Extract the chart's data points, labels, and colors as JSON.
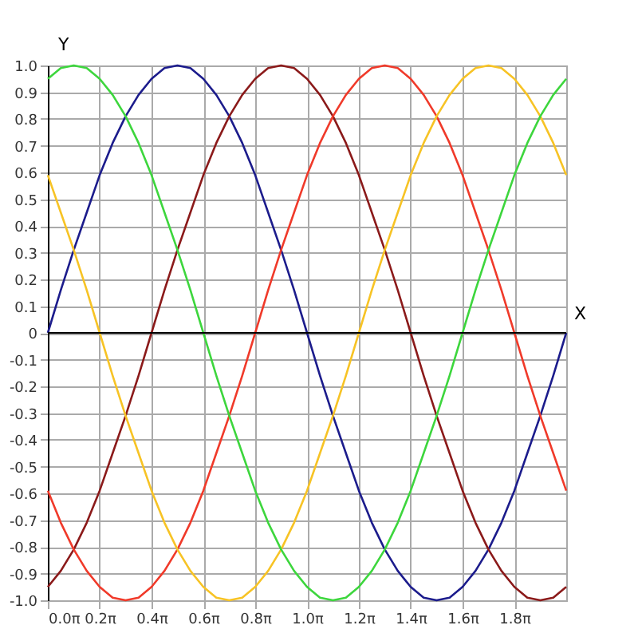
{
  "chart_data": {
    "type": "line",
    "xlabel": "X",
    "ylabel": "Y",
    "x": [
      0,
      0.1571,
      0.3142,
      0.4712,
      0.6283,
      0.7854,
      0.9425,
      1.0996,
      1.2566,
      1.4137,
      1.5708,
      1.7279,
      1.885,
      2.042,
      2.1991,
      2.3562,
      2.5133,
      2.6704,
      2.8274,
      2.9845,
      3.1416,
      3.2987,
      3.4558,
      3.6128,
      3.7699,
      3.927,
      4.0841,
      4.2412,
      4.3982,
      4.5553,
      4.7124,
      4.8695,
      5.0265,
      5.1836,
      5.3407,
      5.4978,
      5.6549,
      5.8119,
      5.969,
      6.1261,
      6.2832
    ],
    "series": [
      {
        "color": "#1c1c8c",
        "values": [
          0,
          0.16,
          0.31,
          0.45,
          0.59,
          0.71,
          0.81,
          0.89,
          0.95,
          0.99,
          1,
          0.99,
          0.95,
          0.89,
          0.81,
          0.71,
          0.59,
          0.45,
          0.31,
          0.16,
          0,
          -0.16,
          -0.31,
          -0.45,
          -0.59,
          -0.71,
          -0.81,
          -0.89,
          -0.95,
          -0.99,
          -1,
          -0.99,
          -0.95,
          -0.89,
          -0.81,
          -0.71,
          -0.59,
          -0.45,
          -0.31,
          -0.16,
          0
        ]
      },
      {
        "color": "#8b1a1a",
        "values": [
          -0.95,
          -0.89,
          -0.81,
          -0.71,
          -0.59,
          -0.45,
          -0.31,
          -0.16,
          0,
          0.16,
          0.31,
          0.45,
          0.59,
          0.71,
          0.81,
          0.89,
          0.95,
          0.99,
          1,
          0.99,
          0.95,
          0.89,
          0.81,
          0.71,
          0.59,
          0.45,
          0.31,
          0.16,
          0,
          -0.16,
          -0.31,
          -0.45,
          -0.59,
          -0.71,
          -0.81,
          -0.89,
          -0.95,
          -0.99,
          -1,
          -0.99,
          -0.95
        ]
      },
      {
        "color": "#f03a2a",
        "values": [
          -0.59,
          -0.71,
          -0.81,
          -0.89,
          -0.95,
          -0.99,
          -1,
          -0.99,
          -0.95,
          -0.89,
          -0.81,
          -0.71,
          -0.59,
          -0.45,
          -0.31,
          -0.16,
          0,
          0.16,
          0.31,
          0.45,
          0.59,
          0.71,
          0.81,
          0.89,
          0.95,
          0.99,
          1,
          0.99,
          0.95,
          0.89,
          0.81,
          0.71,
          0.59,
          0.45,
          0.31,
          0.16,
          0,
          -0.16,
          -0.31,
          -0.45,
          -0.59
        ]
      },
      {
        "color": "#f7c325",
        "values": [
          0.59,
          0.45,
          0.31,
          0.16,
          0,
          -0.16,
          -0.31,
          -0.45,
          -0.59,
          -0.71,
          -0.81,
          -0.89,
          -0.95,
          -0.99,
          -1,
          -0.99,
          -0.95,
          -0.89,
          -0.81,
          -0.71,
          -0.59,
          -0.45,
          -0.31,
          -0.16,
          0,
          0.16,
          0.31,
          0.45,
          0.59,
          0.71,
          0.81,
          0.89,
          0.95,
          0.99,
          1,
          0.99,
          0.95,
          0.89,
          0.81,
          0.71,
          0.59
        ]
      },
      {
        "color": "#3dd63d",
        "values": [
          0.95,
          0.99,
          1,
          0.99,
          0.95,
          0.89,
          0.81,
          0.71,
          0.59,
          0.45,
          0.31,
          0.16,
          0,
          -0.16,
          -0.31,
          -0.45,
          -0.59,
          -0.71,
          -0.81,
          -0.89,
          -0.95,
          -0.99,
          -1,
          -0.99,
          -0.95,
          -0.89,
          -0.81,
          -0.71,
          -0.59,
          -0.45,
          -0.31,
          -0.16,
          0,
          0.16,
          0.31,
          0.45,
          0.59,
          0.71,
          0.81,
          0.89,
          0.95
        ]
      }
    ],
    "xlim": [
      0,
      6.2832
    ],
    "xticks": [
      {
        "value": 0,
        "label": "0.0π"
      },
      {
        "value": 0.6283,
        "label": "0.2π"
      },
      {
        "value": 1.2566,
        "label": "0.4π"
      },
      {
        "value": 1.885,
        "label": "0.6π"
      },
      {
        "value": 2.5133,
        "label": "0.8π"
      },
      {
        "value": 3.1416,
        "label": "1.0π"
      },
      {
        "value": 3.7699,
        "label": "1.2π"
      },
      {
        "value": 4.3982,
        "label": "1.4π"
      },
      {
        "value": 5.0265,
        "label": "1.6π"
      },
      {
        "value": 5.6549,
        "label": "1.8π"
      }
    ],
    "ylim": [
      -1,
      1
    ],
    "yticks": [
      {
        "value": 1,
        "label": "1.0"
      },
      0.9,
      0.8,
      0.7,
      0.6,
      0.5,
      0.4,
      0.3,
      0.2,
      0.1,
      0,
      -0.1,
      -0.2,
      -0.3,
      -0.4,
      -0.5,
      -0.6,
      -0.7,
      -0.8,
      -0.9,
      {
        "value": -1,
        "label": "-1.0"
      }
    ],
    "grid": true,
    "marker": "none",
    "line_style": "solid"
  }
}
